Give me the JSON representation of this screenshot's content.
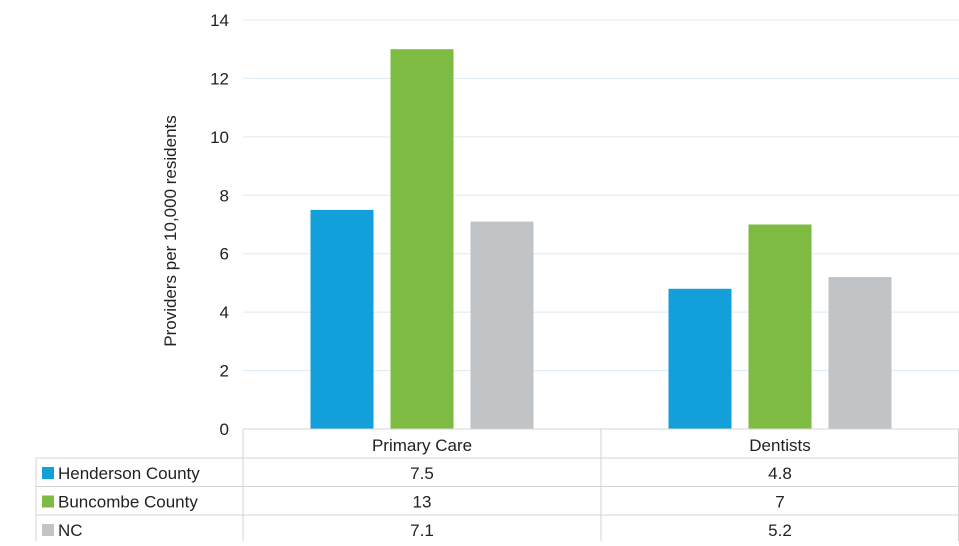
{
  "chart_data": {
    "type": "bar",
    "title": "",
    "xlabel": "",
    "ylabel": "Providers per 10,000 residents",
    "categories": [
      "Primary Care",
      "Dentists"
    ],
    "series": [
      {
        "name": "Henderson County",
        "values": [
          7.5,
          4.8
        ],
        "color": "#139FD9",
        "labels": [
          "7.5",
          "4.8"
        ]
      },
      {
        "name": "Buncombe County",
        "values": [
          13,
          7
        ],
        "color": "#7DBB42",
        "labels": [
          "13",
          "7"
        ]
      },
      {
        "name": "NC",
        "values": [
          7.1,
          5.2
        ],
        "color": "#C1C4C6",
        "labels": [
          "7.1",
          "5.2"
        ]
      }
    ],
    "ylim": [
      0,
      14
    ],
    "yticks": [
      "0",
      "2",
      "4",
      "6",
      "8",
      "10",
      "12",
      "14"
    ],
    "grid": true,
    "legend": "data-table-below"
  }
}
